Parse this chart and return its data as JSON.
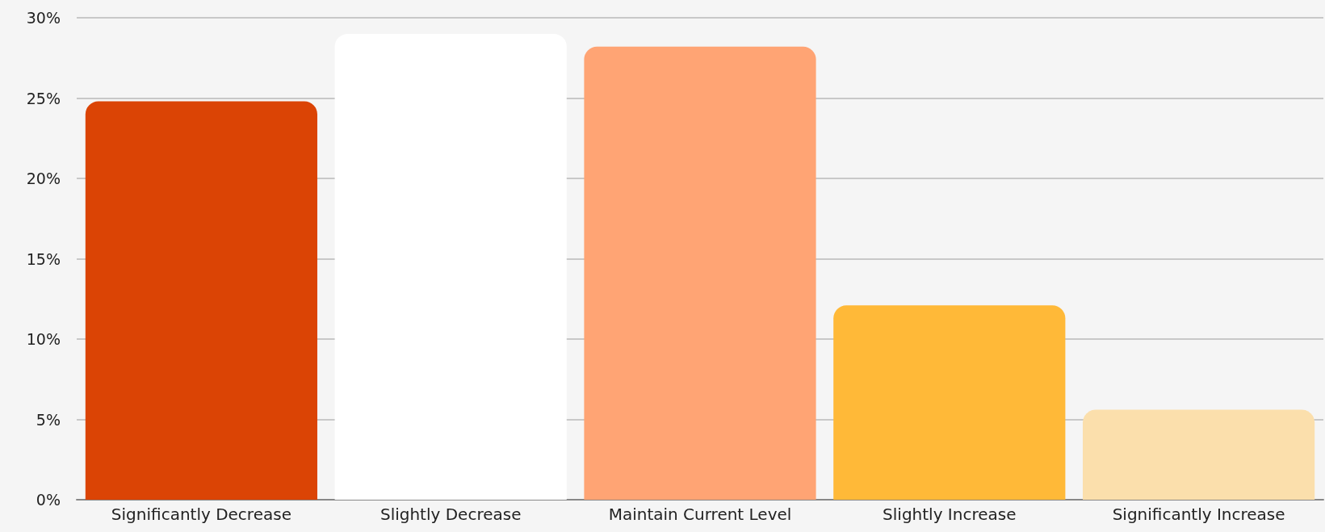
{
  "chart_data": {
    "type": "bar",
    "categories": [
      "Significantly Decrease",
      "Slightly Decrease",
      "Maintain Current Level",
      "Slightly Increase",
      "Significantly Increase"
    ],
    "values": [
      24.8,
      29,
      28.2,
      12.1,
      5.6
    ],
    "colors": [
      "#db4405",
      "#ffffff",
      "#ffa474",
      "#ffb938",
      "#fbdfac"
    ],
    "ylim": [
      0,
      30
    ],
    "yticks": [
      {
        "value": 0,
        "label": "0%"
      },
      {
        "value": 5,
        "label": "5%"
      },
      {
        "value": 10,
        "label": "10%"
      },
      {
        "value": 15,
        "label": "15%"
      },
      {
        "value": 20,
        "label": "20%"
      },
      {
        "value": 25,
        "label": "25%"
      },
      {
        "value": 30,
        "label": "30%"
      }
    ],
    "grid": "y"
  }
}
